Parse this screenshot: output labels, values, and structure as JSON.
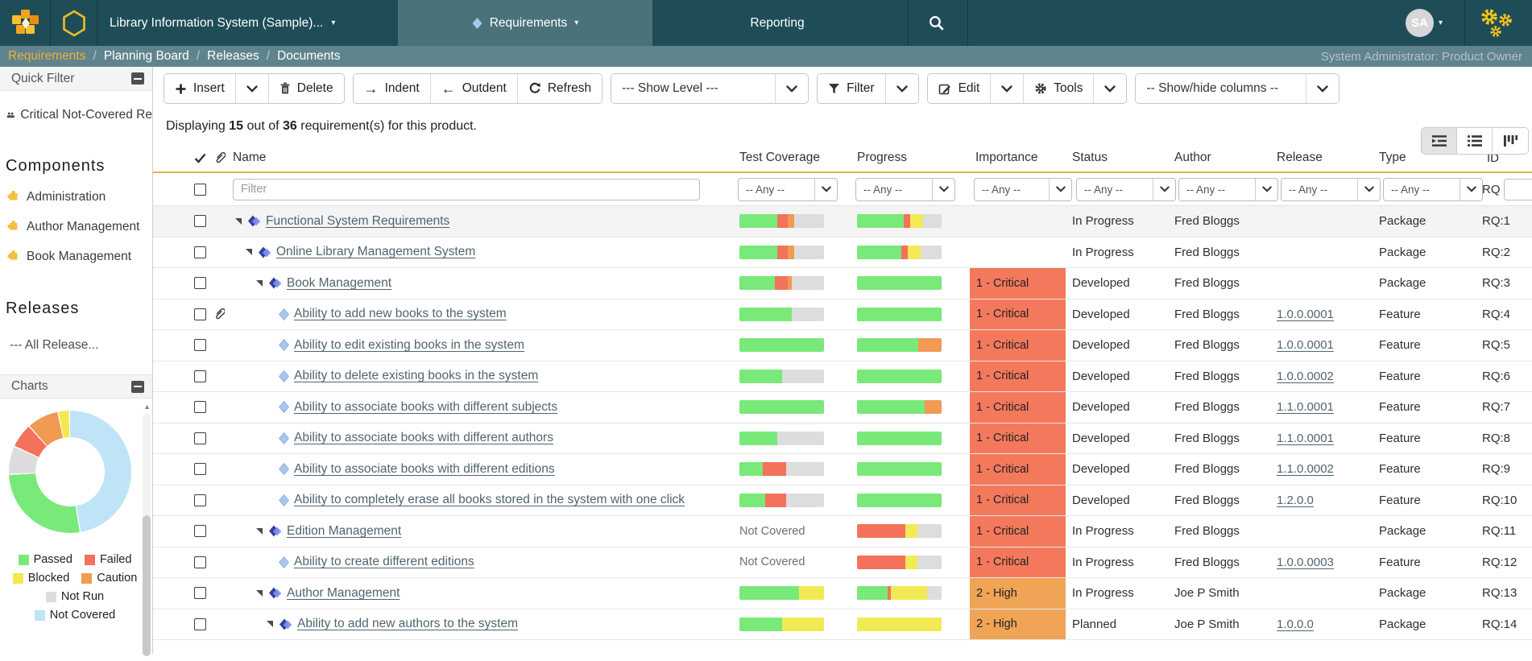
{
  "navbar": {
    "product_label": "Library Information System (Sample)...",
    "tabs": [
      {
        "label": "Requirements",
        "selected": true
      },
      {
        "label": "Reporting",
        "selected": false
      }
    ],
    "avatar_initials": "SA"
  },
  "breadcrumb": {
    "items": [
      "Requirements",
      "Planning Board",
      "Releases",
      "Documents"
    ],
    "active_index": 0,
    "right_text": "System Administrator: Product Owner"
  },
  "sidebar": {
    "quick_filter": {
      "title": "Quick Filter",
      "items": [
        {
          "label": "Critical Not-Covered Re",
          "icon": "people"
        }
      ]
    },
    "components": {
      "title": "Components",
      "items": [
        "Administration",
        "Author Management",
        "Book Management"
      ]
    },
    "releases": {
      "title": "Releases",
      "items": [
        "--- All Release..."
      ]
    },
    "charts": {
      "title": "Charts"
    }
  },
  "chart_data": {
    "type": "pie",
    "subtype": "donut",
    "legend_position": "bottom",
    "start_angle_deg": 0,
    "slices": [
      {
        "label": "Not Covered",
        "pct": 47.5,
        "color": "#bfe4f8"
      },
      {
        "label": "Passed",
        "pct": 27.0,
        "color": "#79e979"
      },
      {
        "label": "Not Run",
        "pct": 7.5,
        "color": "#dcdcdc"
      },
      {
        "label": "Failed",
        "pct": 6.5,
        "color": "#f4715c"
      },
      {
        "label": "Caution",
        "pct": 8.5,
        "color": "#f09a52"
      },
      {
        "label": "Blocked",
        "pct": 3.0,
        "color": "#f2e94e"
      }
    ],
    "legend_order": [
      "Passed",
      "Failed",
      "Blocked",
      "Caution",
      "Not Run",
      "Not Covered"
    ]
  },
  "toolbar": {
    "groups": [
      {
        "buttons": [
          {
            "icon": "plus",
            "label": "Insert"
          },
          {
            "icon": "chevron"
          },
          {
            "icon": "trash",
            "label": "Delete"
          }
        ]
      },
      {
        "buttons": [
          {
            "icon": "arrow-right",
            "label": "Indent"
          },
          {
            "icon": "arrow-left",
            "label": "Outdent"
          },
          {
            "icon": "refresh",
            "label": "Refresh"
          }
        ]
      },
      {
        "buttons": [
          {
            "label": "--- Show Level ---",
            "wide": true
          },
          {
            "icon": "chevron"
          }
        ]
      },
      {
        "buttons": [
          {
            "icon": "funnel",
            "label": "Filter"
          },
          {
            "icon": "chevron"
          }
        ]
      },
      {
        "buttons": [
          {
            "icon": "edit",
            "label": "Edit"
          },
          {
            "icon": "chevron"
          },
          {
            "icon": "gear",
            "label": "Tools"
          },
          {
            "icon": "chevron"
          }
        ]
      },
      {
        "buttons": [
          {
            "label": "-- Show/hide columns --",
            "wide2": true
          },
          {
            "icon": "chevron"
          }
        ]
      }
    ]
  },
  "summary": {
    "prefix": "Displaying",
    "shown": "15",
    "middle": "out of",
    "total": "36",
    "suffix": "requirement(s) for this product."
  },
  "view_toggles": [
    {
      "name": "indent-list-view",
      "selected": true
    },
    {
      "name": "bullet-list-view",
      "selected": false
    },
    {
      "name": "board-columns-view",
      "selected": false
    }
  ],
  "table": {
    "headers": [
      "Name",
      "Test Coverage",
      "Progress",
      "Importance",
      "Status",
      "Author",
      "Release",
      "Type",
      "ID"
    ],
    "filter": {
      "name_placeholder": "Filter",
      "any_label": "-- Any --",
      "id_prefix": "RQ",
      "id_value": ""
    },
    "not_covered_label": "Not Covered",
    "bar_colors": {
      "g": "#79e979",
      "r": "#f4715c",
      "o": "#f09a52",
      "y": "#f2ea54",
      "n": "#dddddd"
    },
    "importance_colors": {
      "1 - Critical": "#f4795c",
      "2 - High": "#f0a455"
    },
    "rows": [
      {
        "id": "RQ:1",
        "name": "Functional System Requirements",
        "level": 0,
        "icon": "package",
        "expand": true,
        "attach": false,
        "shaded": true,
        "tc": [
          [
            "g",
            45
          ],
          [
            "r",
            12
          ],
          [
            "o",
            8
          ],
          [
            "n",
            35
          ]
        ],
        "progress": [
          [
            "g",
            55
          ],
          [
            "r",
            8
          ],
          [
            "y",
            15
          ],
          [
            "n",
            22
          ]
        ],
        "importance": "",
        "status": "In Progress",
        "author": "Fred Bloggs",
        "release": "",
        "type": "Package"
      },
      {
        "id": "RQ:2",
        "name": "Online Library Management System",
        "level": 1,
        "icon": "package",
        "expand": true,
        "attach": false,
        "tc": [
          [
            "g",
            45
          ],
          [
            "r",
            12
          ],
          [
            "o",
            8
          ],
          [
            "n",
            35
          ]
        ],
        "progress": [
          [
            "g",
            52
          ],
          [
            "r",
            8
          ],
          [
            "y",
            15
          ],
          [
            "n",
            25
          ]
        ],
        "importance": "",
        "status": "In Progress",
        "author": "Fred Bloggs",
        "release": "",
        "type": "Package"
      },
      {
        "id": "RQ:3",
        "name": "Book Management",
        "level": 2,
        "icon": "package",
        "expand": true,
        "attach": false,
        "tc": [
          [
            "g",
            42
          ],
          [
            "r",
            15
          ],
          [
            "o",
            5
          ],
          [
            "n",
            38
          ]
        ],
        "progress": [
          [
            "g",
            100
          ]
        ],
        "importance": "1 - Critical",
        "status": "Developed",
        "author": "Fred Bloggs",
        "release": "",
        "type": "Package"
      },
      {
        "id": "RQ:4",
        "name": "Ability to add new books to the system",
        "level": 3,
        "icon": "feature",
        "expand": false,
        "attach": true,
        "tc": [
          [
            "g",
            62
          ],
          [
            "n",
            38
          ]
        ],
        "progress": [
          [
            "g",
            100
          ]
        ],
        "importance": "1 - Critical",
        "status": "Developed",
        "author": "Fred Bloggs",
        "release": "1.0.0.0001",
        "type": "Feature"
      },
      {
        "id": "RQ:5",
        "name": "Ability to edit existing books in the system",
        "level": 3,
        "icon": "feature",
        "expand": false,
        "attach": false,
        "tc": [
          [
            "g",
            100
          ]
        ],
        "progress": [
          [
            "g",
            72
          ],
          [
            "o",
            28
          ]
        ],
        "importance": "1 - Critical",
        "status": "Developed",
        "author": "Fred Bloggs",
        "release": "1.0.0.0001",
        "type": "Feature"
      },
      {
        "id": "RQ:6",
        "name": "Ability to delete existing books in the system",
        "level": 3,
        "icon": "feature",
        "expand": false,
        "attach": false,
        "tc": [
          [
            "g",
            50
          ],
          [
            "n",
            50
          ]
        ],
        "progress": [
          [
            "g",
            100
          ]
        ],
        "importance": "1 - Critical",
        "status": "Developed",
        "author": "Fred Bloggs",
        "release": "1.0.0.0002",
        "type": "Feature"
      },
      {
        "id": "RQ:7",
        "name": "Ability to associate books with different subjects",
        "level": 3,
        "icon": "feature",
        "expand": false,
        "attach": false,
        "tc": [
          [
            "g",
            100
          ]
        ],
        "progress": [
          [
            "g",
            80
          ],
          [
            "o",
            20
          ]
        ],
        "importance": "1 - Critical",
        "status": "Developed",
        "author": "Fred Bloggs",
        "release": "1.1.0.0001",
        "type": "Feature"
      },
      {
        "id": "RQ:8",
        "name": "Ability to associate books with different authors",
        "level": 3,
        "icon": "feature",
        "expand": false,
        "attach": false,
        "tc": [
          [
            "g",
            45
          ],
          [
            "n",
            55
          ]
        ],
        "progress": [
          [
            "g",
            100
          ]
        ],
        "importance": "1 - Critical",
        "status": "Developed",
        "author": "Fred Bloggs",
        "release": "1.1.0.0001",
        "type": "Feature"
      },
      {
        "id": "RQ:9",
        "name": "Ability to associate books with different editions",
        "level": 3,
        "icon": "feature",
        "expand": false,
        "attach": false,
        "tc": [
          [
            "g",
            28
          ],
          [
            "r",
            27
          ],
          [
            "n",
            45
          ]
        ],
        "progress": [
          [
            "g",
            100
          ]
        ],
        "importance": "1 - Critical",
        "status": "Developed",
        "author": "Fred Bloggs",
        "release": "1.1.0.0002",
        "type": "Feature"
      },
      {
        "id": "RQ:10",
        "name": "Ability to completely erase all books stored in the system with one click",
        "level": 3,
        "icon": "feature",
        "expand": false,
        "attach": false,
        "tc": [
          [
            "g",
            30
          ],
          [
            "r",
            25
          ],
          [
            "n",
            45
          ]
        ],
        "progress": [
          [
            "g",
            100
          ]
        ],
        "importance": "1 - Critical",
        "status": "Developed",
        "author": "Fred Bloggs",
        "release": "1.2.0.0",
        "type": "Feature"
      },
      {
        "id": "RQ:11",
        "name": "Edition Management",
        "level": 2,
        "icon": "package",
        "expand": true,
        "attach": false,
        "tc_text": "Not Covered",
        "progress": [
          [
            "r",
            57
          ],
          [
            "y",
            14
          ],
          [
            "n",
            29
          ]
        ],
        "importance": "1 - Critical",
        "status": "In Progress",
        "author": "Fred Bloggs",
        "release": "",
        "type": "Package"
      },
      {
        "id": "RQ:12",
        "name": "Ability to create different editions",
        "level": 3,
        "icon": "feature",
        "expand": false,
        "attach": false,
        "tc_text": "Not Covered",
        "progress": [
          [
            "r",
            57
          ],
          [
            "y",
            14
          ],
          [
            "n",
            29
          ]
        ],
        "importance": "1 - Critical",
        "status": "In Progress",
        "author": "Fred Bloggs",
        "release": "1.0.0.0003",
        "type": "Feature"
      },
      {
        "id": "RQ:13",
        "name": "Author Management",
        "level": 2,
        "icon": "package",
        "expand": true,
        "attach": false,
        "tc": [
          [
            "g",
            70
          ],
          [
            "y",
            30
          ]
        ],
        "progress": [
          [
            "g",
            36
          ],
          [
            "r",
            4
          ],
          [
            "y",
            43
          ],
          [
            "n",
            17
          ]
        ],
        "importance": "2 - High",
        "status": "In Progress",
        "author": "Joe P Smith",
        "release": "",
        "type": "Package"
      },
      {
        "id": "RQ:14",
        "name": "Ability to add new authors to the system",
        "level": 3,
        "icon": "package",
        "expand": true,
        "attach": false,
        "tc": [
          [
            "g",
            50
          ],
          [
            "y",
            50
          ]
        ],
        "progress": [
          [
            "y",
            100
          ]
        ],
        "importance": "2 - High",
        "status": "Planned",
        "author": "Joe P Smith",
        "release": "1.0.0.0",
        "type": "Package"
      }
    ]
  }
}
